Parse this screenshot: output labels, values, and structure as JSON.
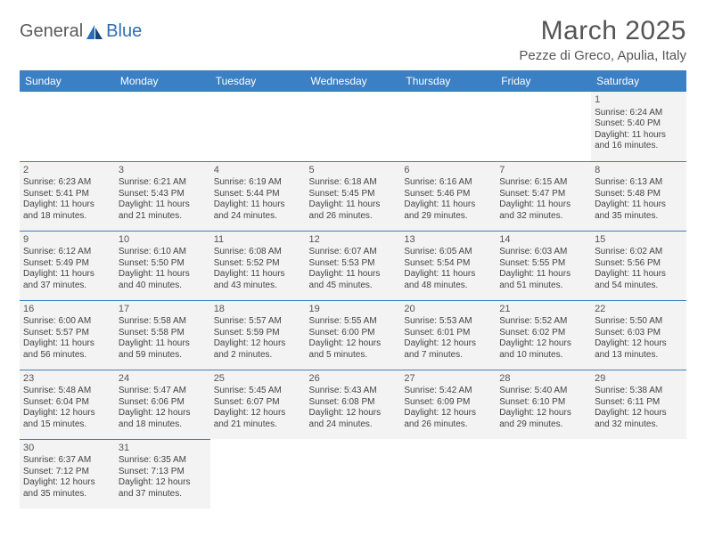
{
  "logo": {
    "text1": "General",
    "text2": "Blue"
  },
  "title": "March 2025",
  "subtitle": "Pezze di Greco, Apulia, Italy",
  "colors": {
    "header_bg": "#3b7fc4",
    "header_fg": "#ffffff",
    "cell_bg": "#f3f3f3",
    "border": "#3b7fc4",
    "title_color": "#555555",
    "logo_blue": "#2f6db3"
  },
  "typography": {
    "title_fontsize": 30,
    "subtitle_fontsize": 15,
    "dayhdr_fontsize": 12,
    "cell_fontsize": 10
  },
  "dayHeaders": [
    "Sunday",
    "Monday",
    "Tuesday",
    "Wednesday",
    "Thursday",
    "Friday",
    "Saturday"
  ],
  "weeks": [
    [
      null,
      null,
      null,
      null,
      null,
      null,
      {
        "n": "1",
        "sr": "Sunrise: 6:24 AM",
        "ss": "Sunset: 5:40 PM",
        "d1": "Daylight: 11 hours",
        "d2": "and 16 minutes."
      }
    ],
    [
      {
        "n": "2",
        "sr": "Sunrise: 6:23 AM",
        "ss": "Sunset: 5:41 PM",
        "d1": "Daylight: 11 hours",
        "d2": "and 18 minutes."
      },
      {
        "n": "3",
        "sr": "Sunrise: 6:21 AM",
        "ss": "Sunset: 5:43 PM",
        "d1": "Daylight: 11 hours",
        "d2": "and 21 minutes."
      },
      {
        "n": "4",
        "sr": "Sunrise: 6:19 AM",
        "ss": "Sunset: 5:44 PM",
        "d1": "Daylight: 11 hours",
        "d2": "and 24 minutes."
      },
      {
        "n": "5",
        "sr": "Sunrise: 6:18 AM",
        "ss": "Sunset: 5:45 PM",
        "d1": "Daylight: 11 hours",
        "d2": "and 26 minutes."
      },
      {
        "n": "6",
        "sr": "Sunrise: 6:16 AM",
        "ss": "Sunset: 5:46 PM",
        "d1": "Daylight: 11 hours",
        "d2": "and 29 minutes."
      },
      {
        "n": "7",
        "sr": "Sunrise: 6:15 AM",
        "ss": "Sunset: 5:47 PM",
        "d1": "Daylight: 11 hours",
        "d2": "and 32 minutes."
      },
      {
        "n": "8",
        "sr": "Sunrise: 6:13 AM",
        "ss": "Sunset: 5:48 PM",
        "d1": "Daylight: 11 hours",
        "d2": "and 35 minutes."
      }
    ],
    [
      {
        "n": "9",
        "sr": "Sunrise: 6:12 AM",
        "ss": "Sunset: 5:49 PM",
        "d1": "Daylight: 11 hours",
        "d2": "and 37 minutes."
      },
      {
        "n": "10",
        "sr": "Sunrise: 6:10 AM",
        "ss": "Sunset: 5:50 PM",
        "d1": "Daylight: 11 hours",
        "d2": "and 40 minutes."
      },
      {
        "n": "11",
        "sr": "Sunrise: 6:08 AM",
        "ss": "Sunset: 5:52 PM",
        "d1": "Daylight: 11 hours",
        "d2": "and 43 minutes."
      },
      {
        "n": "12",
        "sr": "Sunrise: 6:07 AM",
        "ss": "Sunset: 5:53 PM",
        "d1": "Daylight: 11 hours",
        "d2": "and 45 minutes."
      },
      {
        "n": "13",
        "sr": "Sunrise: 6:05 AM",
        "ss": "Sunset: 5:54 PM",
        "d1": "Daylight: 11 hours",
        "d2": "and 48 minutes."
      },
      {
        "n": "14",
        "sr": "Sunrise: 6:03 AM",
        "ss": "Sunset: 5:55 PM",
        "d1": "Daylight: 11 hours",
        "d2": "and 51 minutes."
      },
      {
        "n": "15",
        "sr": "Sunrise: 6:02 AM",
        "ss": "Sunset: 5:56 PM",
        "d1": "Daylight: 11 hours",
        "d2": "and 54 minutes."
      }
    ],
    [
      {
        "n": "16",
        "sr": "Sunrise: 6:00 AM",
        "ss": "Sunset: 5:57 PM",
        "d1": "Daylight: 11 hours",
        "d2": "and 56 minutes."
      },
      {
        "n": "17",
        "sr": "Sunrise: 5:58 AM",
        "ss": "Sunset: 5:58 PM",
        "d1": "Daylight: 11 hours",
        "d2": "and 59 minutes."
      },
      {
        "n": "18",
        "sr": "Sunrise: 5:57 AM",
        "ss": "Sunset: 5:59 PM",
        "d1": "Daylight: 12 hours",
        "d2": "and 2 minutes."
      },
      {
        "n": "19",
        "sr": "Sunrise: 5:55 AM",
        "ss": "Sunset: 6:00 PM",
        "d1": "Daylight: 12 hours",
        "d2": "and 5 minutes."
      },
      {
        "n": "20",
        "sr": "Sunrise: 5:53 AM",
        "ss": "Sunset: 6:01 PM",
        "d1": "Daylight: 12 hours",
        "d2": "and 7 minutes."
      },
      {
        "n": "21",
        "sr": "Sunrise: 5:52 AM",
        "ss": "Sunset: 6:02 PM",
        "d1": "Daylight: 12 hours",
        "d2": "and 10 minutes."
      },
      {
        "n": "22",
        "sr": "Sunrise: 5:50 AM",
        "ss": "Sunset: 6:03 PM",
        "d1": "Daylight: 12 hours",
        "d2": "and 13 minutes."
      }
    ],
    [
      {
        "n": "23",
        "sr": "Sunrise: 5:48 AM",
        "ss": "Sunset: 6:04 PM",
        "d1": "Daylight: 12 hours",
        "d2": "and 15 minutes."
      },
      {
        "n": "24",
        "sr": "Sunrise: 5:47 AM",
        "ss": "Sunset: 6:06 PM",
        "d1": "Daylight: 12 hours",
        "d2": "and 18 minutes."
      },
      {
        "n": "25",
        "sr": "Sunrise: 5:45 AM",
        "ss": "Sunset: 6:07 PM",
        "d1": "Daylight: 12 hours",
        "d2": "and 21 minutes."
      },
      {
        "n": "26",
        "sr": "Sunrise: 5:43 AM",
        "ss": "Sunset: 6:08 PM",
        "d1": "Daylight: 12 hours",
        "d2": "and 24 minutes."
      },
      {
        "n": "27",
        "sr": "Sunrise: 5:42 AM",
        "ss": "Sunset: 6:09 PM",
        "d1": "Daylight: 12 hours",
        "d2": "and 26 minutes."
      },
      {
        "n": "28",
        "sr": "Sunrise: 5:40 AM",
        "ss": "Sunset: 6:10 PM",
        "d1": "Daylight: 12 hours",
        "d2": "and 29 minutes."
      },
      {
        "n": "29",
        "sr": "Sunrise: 5:38 AM",
        "ss": "Sunset: 6:11 PM",
        "d1": "Daylight: 12 hours",
        "d2": "and 32 minutes."
      }
    ],
    [
      {
        "n": "30",
        "sr": "Sunrise: 6:37 AM",
        "ss": "Sunset: 7:12 PM",
        "d1": "Daylight: 12 hours",
        "d2": "and 35 minutes."
      },
      {
        "n": "31",
        "sr": "Sunrise: 6:35 AM",
        "ss": "Sunset: 7:13 PM",
        "d1": "Daylight: 12 hours",
        "d2": "and 37 minutes."
      },
      null,
      null,
      null,
      null,
      null
    ]
  ]
}
